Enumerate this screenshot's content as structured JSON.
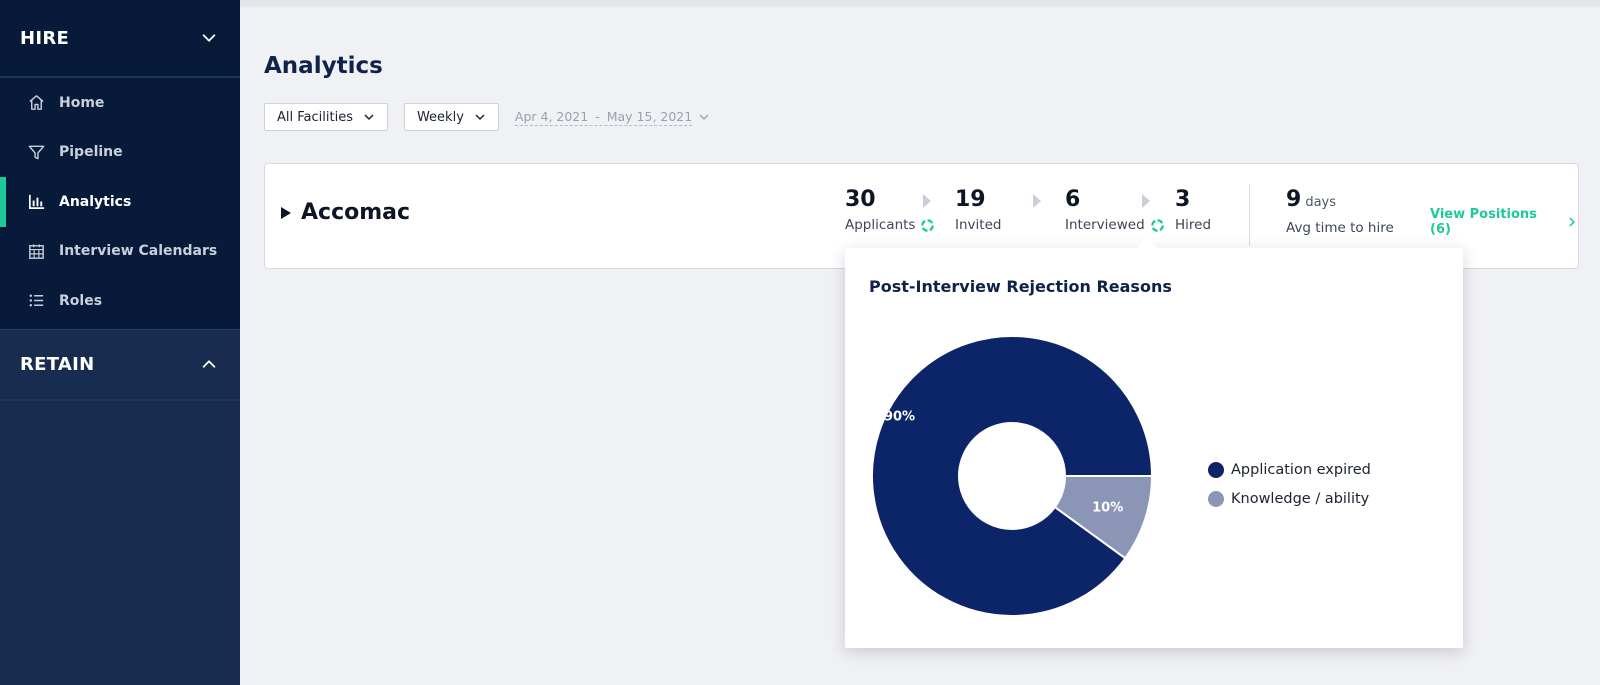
{
  "sidebar": {
    "hire": {
      "title": "HIRE",
      "items": [
        {
          "label": "Home",
          "icon": "home-icon"
        },
        {
          "label": "Pipeline",
          "icon": "funnel-icon"
        },
        {
          "label": "Analytics",
          "icon": "bar-chart-icon",
          "active": true
        },
        {
          "label": "Interview Calendars",
          "icon": "calendar-icon"
        },
        {
          "label": "Roles",
          "icon": "list-icon"
        }
      ]
    },
    "retain": {
      "title": "RETAIN"
    }
  },
  "page": {
    "title": "Analytics"
  },
  "filters": {
    "facility": "All Facilities",
    "interval": "Weekly",
    "date_start": "Apr 4, 2021",
    "date_sep": "-",
    "date_end": "May 15, 2021"
  },
  "facility": {
    "name": "Accomac",
    "stats": {
      "applicants": {
        "value": "30",
        "label": "Applicants"
      },
      "invited": {
        "value": "19",
        "label": "Invited"
      },
      "interviewed": {
        "value": "6",
        "label": "Interviewed"
      },
      "hired": {
        "value": "3",
        "label": "Hired"
      },
      "avg_time": {
        "value": "9",
        "unit": "days",
        "label": "Avg time to hire"
      }
    },
    "view_positions": "View Positions (6)"
  },
  "colors": {
    "accent": "#1ec99a",
    "navy": "#0c2468",
    "gray_blue": "#8b96b7"
  },
  "popover": {
    "title": "Post-Interview Rejection Reasons"
  },
  "chart_data": {
    "type": "pie",
    "title": "Post-Interview Rejection Reasons",
    "donut": true,
    "categories": [
      "Application expired",
      "Knowledge / ability"
    ],
    "values": [
      90,
      10
    ],
    "labels": [
      "90%",
      "10%"
    ],
    "colors": [
      "#0c2468",
      "#8b96b7"
    ],
    "legend": "right"
  }
}
